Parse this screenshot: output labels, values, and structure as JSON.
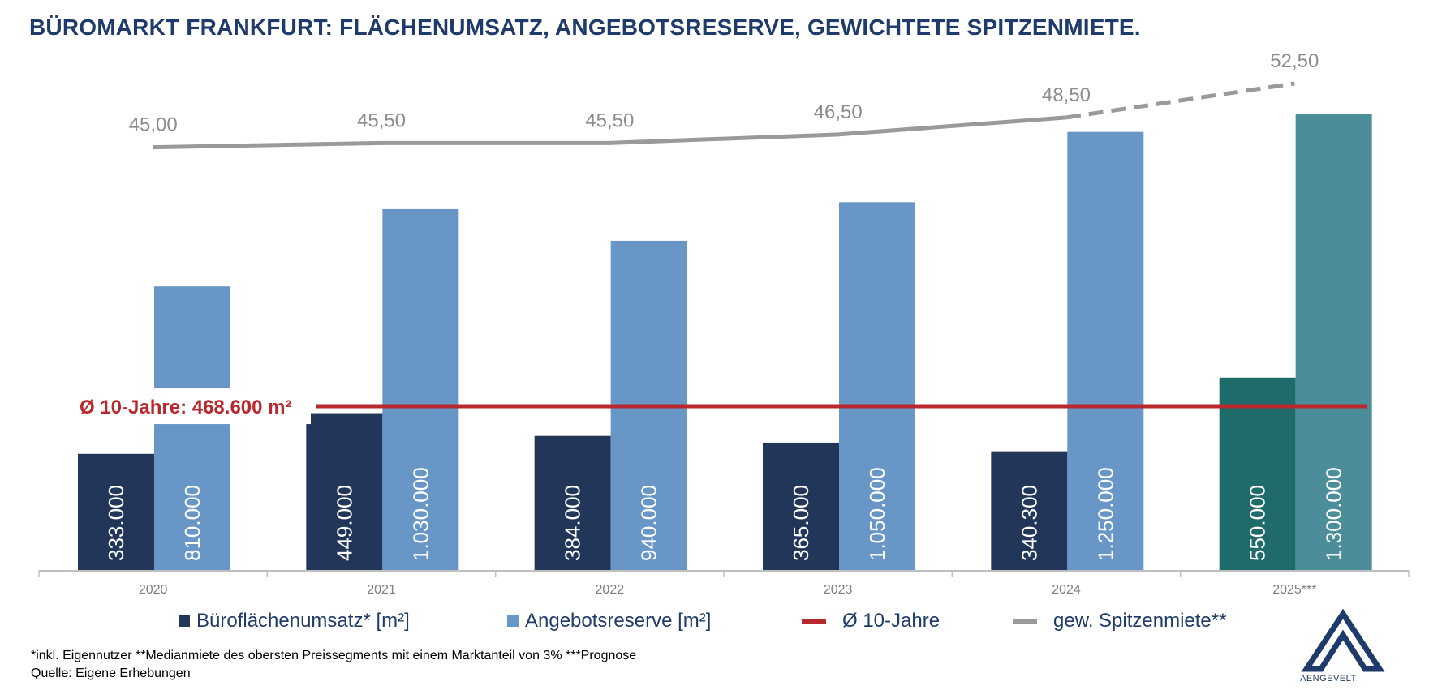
{
  "title": "BÜROMARKT FRANKFURT: FLÄCHENUMSATZ, ANGEBOTSRESERVE, GEWICHTETE SPITZENMIETE.",
  "colors": {
    "umsatz": "#22365a",
    "reserve": "#6796c7",
    "umsatz_forecast": "#1f6b69",
    "reserve_forecast": "#4b8e99",
    "avg_line": "#b8282c",
    "rent_line": "#9a9a9a",
    "title": "#1f3b6b"
  },
  "chart_data": {
    "type": "bar",
    "categories": [
      "2020",
      "2021",
      "2022",
      "2023",
      "2024",
      "2025***"
    ],
    "series": [
      {
        "name": "Büroflächenumsatz* [m²]",
        "values": [
          333000,
          449000,
          384000,
          365000,
          340300,
          550000
        ],
        "labels": [
          "333.000",
          "449.000",
          "384.000",
          "365.000",
          "340.300",
          "550.000"
        ]
      },
      {
        "name": "Angebotsreserve [m²]",
        "values": [
          810000,
          1030000,
          940000,
          1050000,
          1250000,
          1300000
        ],
        "labels": [
          "810.000",
          "1.030.000",
          "940.000",
          "1.050.000",
          "1.250.000",
          "1.300.000"
        ]
      },
      {
        "name": "gew. Spitzenmiete**",
        "type": "line",
        "values": [
          45.0,
          45.5,
          45.5,
          46.5,
          48.5,
          52.5
        ],
        "labels": [
          "45,00",
          "45,50",
          "45,50",
          "46,50",
          "48,50",
          "52,50"
        ],
        "forecast_from_index": 4
      }
    ],
    "reference_line": {
      "name": "Ø 10-Jahre",
      "value": 468600,
      "label": "Ø 10-Jahre: 468.600 m²"
    },
    "forecast_category_index": 5,
    "ylim": [
      0,
      1300000
    ],
    "rent_ylim": [
      42.0,
      52.5
    ],
    "grid": false,
    "legend_position": "bottom"
  },
  "legend": {
    "umsatz": "Büroflächenumsatz* [m²]",
    "reserve": "Angebotsreserve [m²]",
    "avg": "Ø 10-Jahre",
    "rent": "gew. Spitzenmiete**"
  },
  "footnote": "*inkl. Eigennutzer **Medianmiete des obersten Preissegments mit einem Marktanteil von 3% ***Prognose",
  "source": "Quelle: Eigene Erhebungen",
  "logo_text": "AENGEVELT"
}
